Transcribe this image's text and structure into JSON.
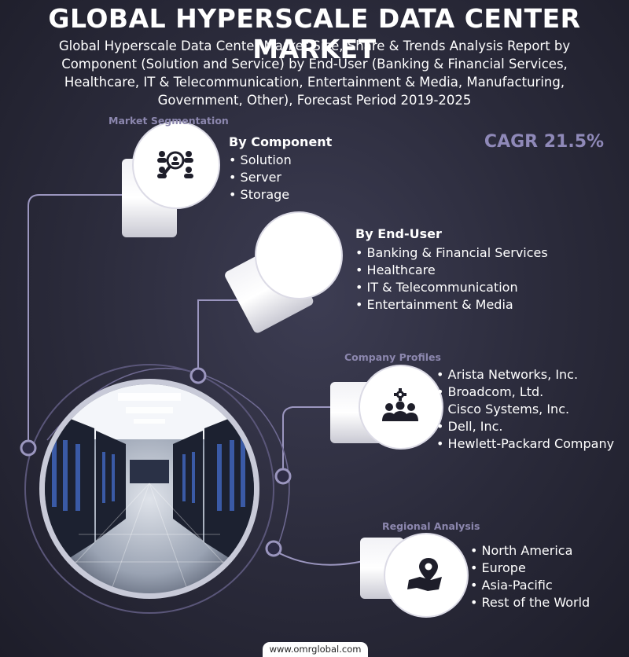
{
  "header": {
    "title": "GLOBAL HYPERSCALE DATA CENTER MARKET",
    "subtitle": "Global Hyperscale Data Center Market Size, Share & Trends Analysis Report by Component (Solution and Service) by End-User (Banking & Financial Services, Healthcare, IT & Telecommunication, Entertainment & Media, Manufacturing, Government, Other), Forecast Period 2019-2025"
  },
  "cagr": "CAGR 21.5%",
  "segmentation": {
    "label": "Market Segmentation",
    "heading": "By Component",
    "items": [
      "Solution",
      "Server",
      "Storage"
    ],
    "icon": "people-search-icon"
  },
  "end_user": {
    "heading": "By End-User",
    "items": [
      "Banking & Financial Services",
      "Healthcare",
      "IT & Telecommunication",
      "Entertainment & Media"
    ]
  },
  "companies": {
    "label": "Company Profiles",
    "items": [
      "Arista Networks, Inc.",
      "Broadcom, Ltd.",
      "Cisco Systems, Inc.",
      "Dell, Inc.",
      "Hewlett-Packard Company"
    ],
    "icon": "team-gear-icon"
  },
  "regional": {
    "label": "Regional Analysis",
    "items": [
      "North America",
      "Europe",
      "Asia-Pacific",
      "Rest of the World"
    ],
    "icon": "map-pin-icon"
  },
  "footer": "www.omrglobal.com",
  "colors": {
    "background": "#2a2a3a",
    "accent": "#8f89b8",
    "connector": "#9b96bf",
    "node": "#2d2b45"
  }
}
